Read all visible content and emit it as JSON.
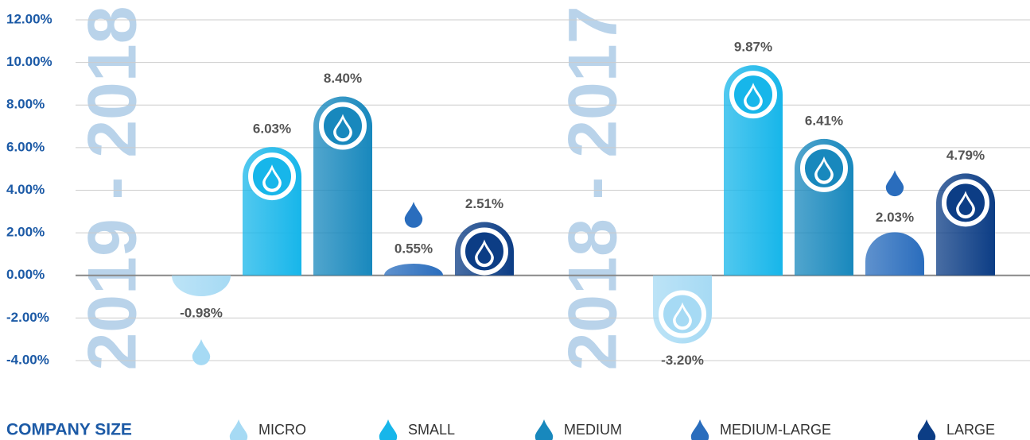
{
  "chart_data": {
    "type": "bar",
    "categories": [
      "MICRO",
      "SMALL",
      "MEDIUM",
      "MEDIUM-LARGE",
      "LARGE"
    ],
    "colors": [
      "#a6daf4",
      "#17b6ea",
      "#1888bd",
      "#2a6dbd",
      "#0c3d85"
    ],
    "legend_title": "COMPANY SIZE",
    "series": [
      {
        "name": "2019 - 2018",
        "values": [
          -0.98,
          6.03,
          8.4,
          0.55,
          2.51
        ],
        "value_labels": [
          "-0.98%",
          "6.03%",
          "8.40%",
          "0.55%",
          "2.51%"
        ]
      },
      {
        "name": "2018 - 2017",
        "values": [
          -3.2,
          9.87,
          6.41,
          2.03,
          4.79
        ],
        "value_labels": [
          "-3.20%",
          "9.87%",
          "6.41%",
          "2.03%",
          "4.79%"
        ]
      }
    ],
    "ylim": [
      -4,
      12
    ],
    "yticks": [
      {
        "value": 12,
        "label": "12.00%"
      },
      {
        "value": 10,
        "label": "10.00%"
      },
      {
        "value": 8,
        "label": "8.00%"
      },
      {
        "value": 6,
        "label": "6.00%"
      },
      {
        "value": 4,
        "label": "4.00%"
      },
      {
        "value": 2,
        "label": "2.00%"
      },
      {
        "value": 0,
        "label": "0.00%"
      },
      {
        "value": -2,
        "label": "-2.00%"
      },
      {
        "value": -4,
        "label": "-4.00%"
      }
    ],
    "grid": true
  }
}
